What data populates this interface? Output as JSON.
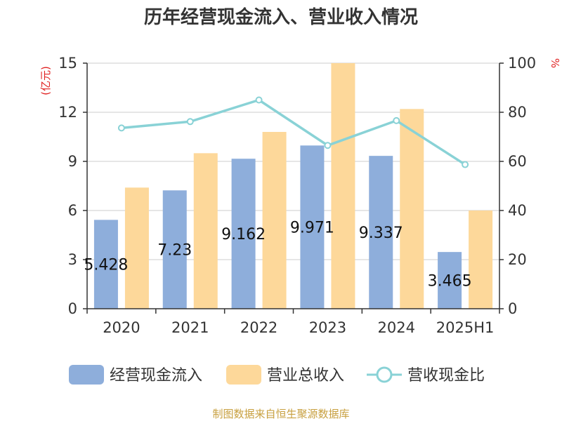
{
  "chart_data": {
    "type": "bar",
    "title": "历年经营现金流入、营业收入情况",
    "categories": [
      "2020",
      "2021",
      "2022",
      "2023",
      "2024",
      "2025H1"
    ],
    "series": [
      {
        "name": "经营现金流入",
        "kind": "bar",
        "axis": "left",
        "color": "#8eaedb",
        "values": [
          5.428,
          7.23,
          9.162,
          9.971,
          9.337,
          3.465
        ],
        "data_labels": [
          "5.428",
          "7.23",
          "9.162",
          "9.971",
          "9.337",
          "3.465"
        ]
      },
      {
        "name": "营业总收入",
        "kind": "bar",
        "axis": "left",
        "color": "#fdd89a",
        "values": [
          7.4,
          9.5,
          10.8,
          15.0,
          12.2,
          6.0
        ]
      },
      {
        "name": "营收现金比",
        "kind": "line",
        "axis": "right",
        "color": "#89d2d6",
        "values": [
          73.6,
          76.2,
          85.0,
          66.5,
          76.6,
          58.7
        ]
      }
    ],
    "y_left": {
      "unit": "(亿元)",
      "min": 0,
      "max": 15,
      "ticks": [
        "0",
        "3",
        "6",
        "9",
        "12",
        "15"
      ]
    },
    "y_right": {
      "unit": "%",
      "min": 0,
      "max": 100,
      "ticks": [
        "0",
        "20",
        "40",
        "60",
        "80",
        "100"
      ]
    },
    "grid": true,
    "legend_position": "bottom",
    "unit_color": "#e02020"
  },
  "source": "制图数据来自恒生聚源数据库",
  "source_color": "#c8a040"
}
